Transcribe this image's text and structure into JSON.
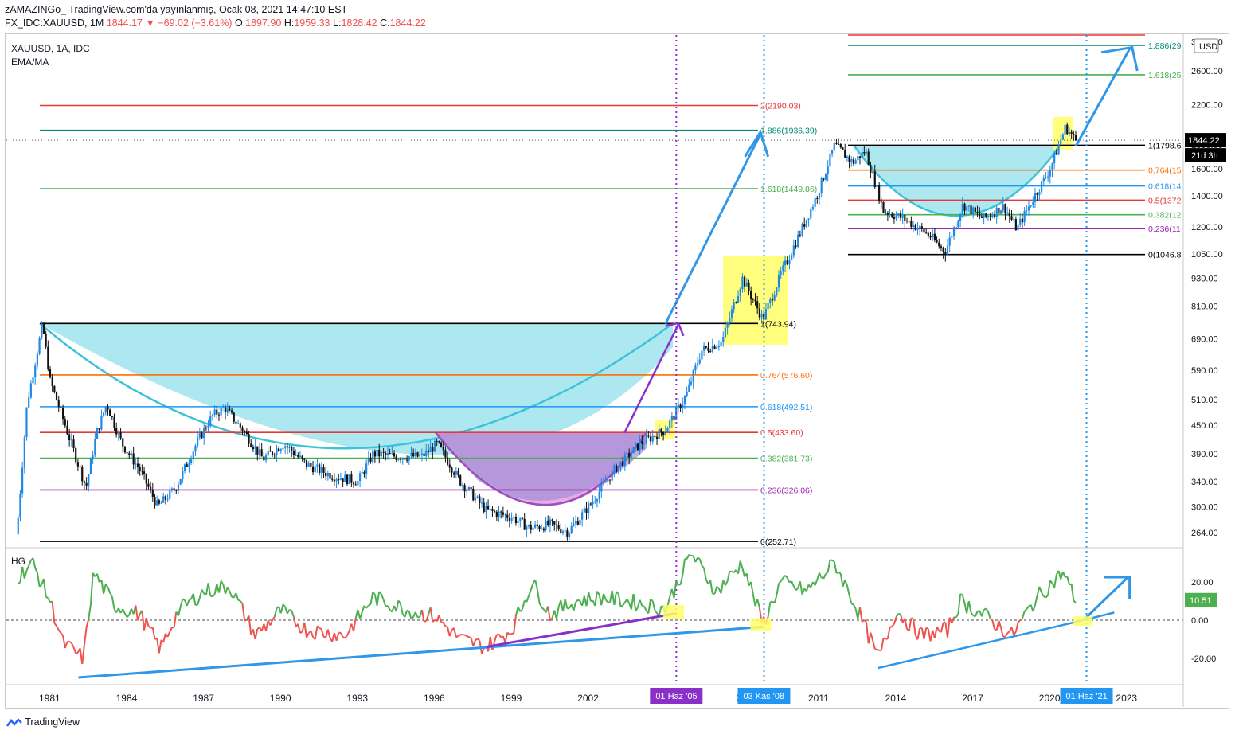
{
  "header": {
    "publisher": "zAMAZINGo_",
    "published": "TradingView.com'da yayınlanmış, Ocak 08, 2021 14:47:10 EST",
    "symbol_line": "FX_IDC:XAUUSD, 1M",
    "last": "1844.17",
    "change": "▼ −69.02 (−3.61%)",
    "o_label": "O:",
    "o": "1897.90",
    "h_label": "H:",
    "h": "1959.33",
    "l_label": "L:",
    "l": "1828.42",
    "c_label": "C:",
    "c": "1844.22"
  },
  "legend": {
    "symbol": "XAUUSD, 1A, IDC",
    "indicator": "EMA/MA"
  },
  "oscillator": {
    "label": "HG",
    "value_badge": "10.51"
  },
  "axis": {
    "currency": "USD",
    "price_badge": "1844.22",
    "countdown_badge": "21d 3h"
  },
  "date_markers": [
    "01 Haz '05",
    "03 Kas '08",
    "01 Haz '21"
  ],
  "footer": {
    "brand": "TradingView"
  },
  "colors": {
    "up": "#26a69a",
    "down": "#ef5350",
    "cup_fill": "#9fe4ee",
    "cup_line": "#3cc3d9",
    "inner_cup": "#a28fd7",
    "pink_cup": "#e6a3e0",
    "arrow_blue": "#2f96e8",
    "arrow_purple": "#8b2fc9",
    "highlight": "#ffff66",
    "osc_green": "#4caf50",
    "osc_red": "#ef5350"
  },
  "chart_data": [
    {
      "type": "candlestick",
      "title": "XAUUSD, 1A, IDC",
      "ylabel": "USD",
      "y_scale": "log",
      "ylim": [
        245,
        3300
      ],
      "x_ticks": [
        "1981",
        "1984",
        "1987",
        "1990",
        "1993",
        "1996",
        "1999",
        "2002",
        "20",
        "2011",
        "2014",
        "2017",
        "2020",
        "2023"
      ],
      "y_ticks": [
        "264.00",
        "300.00",
        "340.00",
        "390.00",
        "450.00",
        "510.00",
        "590.00",
        "690.00",
        "810.00",
        "930.00",
        "1050.00",
        "1200.00",
        "1400.00",
        "1600.00",
        "1800.00",
        "2200.00",
        "2600.00",
        "3000.00"
      ],
      "grid": false,
      "price_path": [
        {
          "x": 1979.7,
          "y": 262
        },
        {
          "x": 1980.1,
          "y": 500
        },
        {
          "x": 1980.7,
          "y": 740
        },
        {
          "x": 1981.0,
          "y": 560
        },
        {
          "x": 1981.7,
          "y": 430
        },
        {
          "x": 1982.4,
          "y": 330
        },
        {
          "x": 1982.8,
          "y": 430
        },
        {
          "x": 1983.2,
          "y": 500
        },
        {
          "x": 1983.8,
          "y": 410
        },
        {
          "x": 1984.5,
          "y": 360
        },
        {
          "x": 1985.2,
          "y": 300
        },
        {
          "x": 1985.9,
          "y": 330
        },
        {
          "x": 1986.7,
          "y": 410
        },
        {
          "x": 1987.3,
          "y": 470
        },
        {
          "x": 1987.8,
          "y": 490
        },
        {
          "x": 1988.5,
          "y": 440
        },
        {
          "x": 1989.3,
          "y": 380
        },
        {
          "x": 1990.1,
          "y": 410
        },
        {
          "x": 1991.0,
          "y": 370
        },
        {
          "x": 1992.0,
          "y": 350
        },
        {
          "x": 1993.0,
          "y": 340
        },
        {
          "x": 1993.6,
          "y": 390
        },
        {
          "x": 1994.5,
          "y": 385
        },
        {
          "x": 1995.5,
          "y": 385
        },
        {
          "x": 1996.1,
          "y": 410
        },
        {
          "x": 1997.0,
          "y": 340
        },
        {
          "x": 1998.0,
          "y": 295
        },
        {
          "x": 1999.0,
          "y": 285
        },
        {
          "x": 1999.7,
          "y": 270
        },
        {
          "x": 2000.5,
          "y": 275
        },
        {
          "x": 2001.2,
          "y": 265
        },
        {
          "x": 2002.0,
          "y": 300
        },
        {
          "x": 2003.0,
          "y": 360
        },
        {
          "x": 2004.0,
          "y": 410
        },
        {
          "x": 2005.0,
          "y": 440
        },
        {
          "x": 2005.8,
          "y": 520
        },
        {
          "x": 2006.4,
          "y": 650
        },
        {
          "x": 2007.2,
          "y": 680
        },
        {
          "x": 2008.0,
          "y": 930
        },
        {
          "x": 2008.8,
          "y": 760
        },
        {
          "x": 2009.5,
          "y": 950
        },
        {
          "x": 2010.2,
          "y": 1150
        },
        {
          "x": 2010.9,
          "y": 1400
        },
        {
          "x": 2011.6,
          "y": 1800
        },
        {
          "x": 2012.3,
          "y": 1650
        },
        {
          "x": 2012.8,
          "y": 1750
        },
        {
          "x": 2013.5,
          "y": 1300
        },
        {
          "x": 2014.3,
          "y": 1250
        },
        {
          "x": 2015.3,
          "y": 1150
        },
        {
          "x": 2015.9,
          "y": 1060
        },
        {
          "x": 2016.6,
          "y": 1340
        },
        {
          "x": 2017.4,
          "y": 1250
        },
        {
          "x": 2018.2,
          "y": 1330
        },
        {
          "x": 2018.7,
          "y": 1190
        },
        {
          "x": 2019.4,
          "y": 1400
        },
        {
          "x": 2020.0,
          "y": 1600
        },
        {
          "x": 2020.6,
          "y": 1970
        },
        {
          "x": 2021.0,
          "y": 1844
        }
      ],
      "fib_left": {
        "levels": [
          {
            "ratio": "0",
            "price": 252.71,
            "label": "0(252.71)"
          },
          {
            "ratio": "0.236",
            "price": 326.06,
            "label": "0.236(326.06)"
          },
          {
            "ratio": "0.382",
            "price": 381.73,
            "label": "0.382(381.73)"
          },
          {
            "ratio": "0.5",
            "price": 433.6,
            "label": "0.5(433.60)"
          },
          {
            "ratio": "0.618",
            "price": 492.51,
            "label": "0.618(492.51)"
          },
          {
            "ratio": "0.764",
            "price": 576.6,
            "label": "0.764(576.60)"
          },
          {
            "ratio": "1",
            "price": 743.94,
            "label": "1(743.94)"
          },
          {
            "ratio": "1.618",
            "price": 1449.86,
            "label": "1.618(1449.86)"
          },
          {
            "ratio": "1.886",
            "price": 1936.39,
            "label": "1.886(1936.39)"
          },
          {
            "ratio": "2",
            "price": 2190.03,
            "label": "2(2190.03)"
          }
        ]
      },
      "fib_right": {
        "levels": [
          {
            "ratio": "0",
            "price": 1046.8,
            "label": "0(1046.8"
          },
          {
            "ratio": "0.236",
            "price": 1190,
            "label": "0.236(11"
          },
          {
            "ratio": "0.382",
            "price": 1275,
            "label": "0.382(12"
          },
          {
            "ratio": "0.5",
            "price": 1370,
            "label": "0.5(1372"
          },
          {
            "ratio": "0.618",
            "price": 1470,
            "label": "0.618(14"
          },
          {
            "ratio": "0.764",
            "price": 1590,
            "label": "0.764(15"
          },
          {
            "ratio": "1",
            "price": 1798.6,
            "label": "1(1798.6"
          },
          {
            "ratio": "1.618",
            "price": 2550,
            "label": "1.618(25"
          },
          {
            "ratio": "1.886",
            "price": 2950,
            "label": "1.886(29"
          },
          {
            "ratio": "2",
            "price": 3200,
            "label": ""
          }
        ]
      },
      "annotations": [
        "01 Haz '05",
        "03 Kas '08",
        "01 Haz '21"
      ]
    },
    {
      "type": "line",
      "title": "HG",
      "y_ticks": [
        "20.00",
        "0.00",
        "-20.00"
      ],
      "ylim": [
        -32,
        36
      ],
      "path": [
        {
          "x": 1979.7,
          "y": 22
        },
        {
          "x": 1980.3,
          "y": 30
        },
        {
          "x": 1981.0,
          "y": 10
        },
        {
          "x": 1981.5,
          "y": -12
        },
        {
          "x": 1982.3,
          "y": -20
        },
        {
          "x": 1982.7,
          "y": 25
        },
        {
          "x": 1983.5,
          "y": 8
        },
        {
          "x": 1984.5,
          "y": 3
        },
        {
          "x": 1985.3,
          "y": -15
        },
        {
          "x": 1986.0,
          "y": 5
        },
        {
          "x": 1987.0,
          "y": 15
        },
        {
          "x": 1988.0,
          "y": 18
        },
        {
          "x": 1989.0,
          "y": -8
        },
        {
          "x": 1990.0,
          "y": 5
        },
        {
          "x": 1991.0,
          "y": -5
        },
        {
          "x": 1992.5,
          "y": -8
        },
        {
          "x": 1993.6,
          "y": 12
        },
        {
          "x": 1995.0,
          "y": 5
        },
        {
          "x": 1996.0,
          "y": 2
        },
        {
          "x": 1997.0,
          "y": -10
        },
        {
          "x": 1998.0,
          "y": -14
        },
        {
          "x": 1999.0,
          "y": -5
        },
        {
          "x": 1999.8,
          "y": 20
        },
        {
          "x": 2000.5,
          "y": 3
        },
        {
          "x": 2001.5,
          "y": 10
        },
        {
          "x": 2002.5,
          "y": 12
        },
        {
          "x": 2003.5,
          "y": 10
        },
        {
          "x": 2005.0,
          "y": 6
        },
        {
          "x": 2006.0,
          "y": 35
        },
        {
          "x": 2007.0,
          "y": 15
        },
        {
          "x": 2008.0,
          "y": 30
        },
        {
          "x": 2008.8,
          "y": -2
        },
        {
          "x": 2009.5,
          "y": 20
        },
        {
          "x": 2010.5,
          "y": 15
        },
        {
          "x": 2011.6,
          "y": 30
        },
        {
          "x": 2012.5,
          "y": 5
        },
        {
          "x": 2013.3,
          "y": -20
        },
        {
          "x": 2014.0,
          "y": 5
        },
        {
          "x": 2015.0,
          "y": -8
        },
        {
          "x": 2016.0,
          "y": -5
        },
        {
          "x": 2016.5,
          "y": 10
        },
        {
          "x": 2017.5,
          "y": 2
        },
        {
          "x": 2018.5,
          "y": -8
        },
        {
          "x": 2019.5,
          "y": 12
        },
        {
          "x": 2020.5,
          "y": 25
        },
        {
          "x": 2021.0,
          "y": 10.51
        }
      ]
    }
  ]
}
